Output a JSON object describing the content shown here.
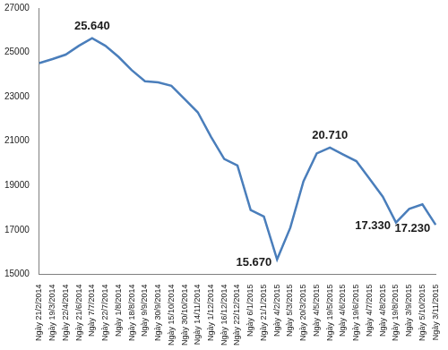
{
  "chart_data": {
    "type": "line",
    "categories": [
      "Ngày 21/2/2014",
      "Ngày 19/3/2014",
      "Ngày 22/4/2014",
      "Ngày 21/6/2014",
      "Ngày 7/7/2014",
      "Ngày 22/7/2014",
      "Ngày 1/8/2014",
      "Ngày 18/8/2014",
      "Ngày 9/9/2014",
      "Ngày 30/9/2014",
      "Ngày 15/10/2014",
      "Ngày 30/10/2014",
      "Ngày 14/11/2014",
      "Ngày 1/12/2014",
      "Ngày 16/12/2014",
      "Ngày 22/12/2014",
      "Ngày 6/1/2015",
      "Ngày 21/1/2015",
      "Ngày 4/2/2015",
      "Ngày 5/3/2015",
      "Ngày 20/3/2015",
      "Ngày 4/5/2015",
      "Ngày 19/5/2015",
      "Ngày 4/6/2015",
      "Ngày 19/6/2015",
      "Ngày 4/7/2015",
      "Ngày 4/8/2015",
      "Ngày 19/8/2015",
      "Ngày 3/9/2015",
      "Ngày 5/10/2015",
      "Ngày 3/11/2015"
    ],
    "values": [
      24520,
      24700,
      24900,
      25300,
      25640,
      25300,
      24800,
      24200,
      23700,
      23650,
      23500,
      22900,
      22300,
      21200,
      20200,
      19900,
      17900,
      17600,
      15670,
      17100,
      19200,
      20450,
      20710,
      20400,
      20100,
      19300,
      18500,
      17330,
      17950,
      18150,
      17230
    ],
    "value_labels": [
      null,
      null,
      null,
      null,
      "25.640",
      null,
      null,
      null,
      null,
      null,
      null,
      null,
      null,
      null,
      null,
      null,
      null,
      null,
      "15.670",
      null,
      null,
      null,
      "20.710",
      null,
      null,
      null,
      null,
      "17.330",
      null,
      null,
      "17.230"
    ],
    "data_labels": true,
    "color": "#4a7ebb",
    "ylim": [
      15000,
      27000
    ],
    "yticks": [
      15000,
      17000,
      19000,
      21000,
      23000,
      25000,
      27000
    ],
    "grid": false
  }
}
